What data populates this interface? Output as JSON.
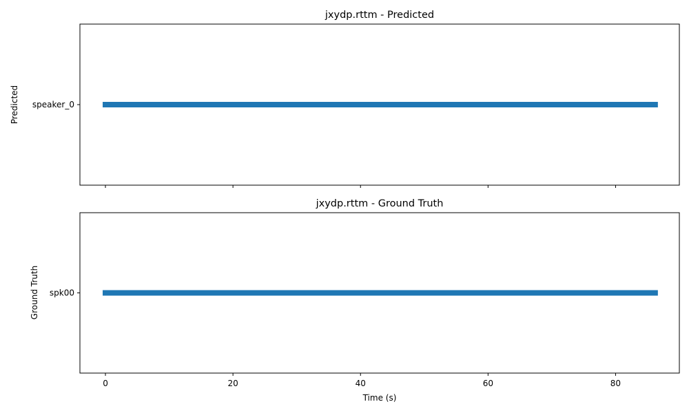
{
  "chart_data": [
    {
      "type": "timeline",
      "title": "jxydp.rttm - Predicted",
      "ylabel": "Predicted",
      "xlabel": "",
      "xlim": [
        -4,
        90
      ],
      "xticks": [
        0,
        20,
        40,
        60,
        80
      ],
      "show_xtick_labels": false,
      "categories": [
        "speaker_0"
      ],
      "segments": [
        {
          "speaker": "speaker_0",
          "start": 0,
          "end": 86.2
        }
      ],
      "color": "#1f77b4",
      "grid": false
    },
    {
      "type": "timeline",
      "title": "jxydp.rttm - Ground Truth",
      "ylabel": "Ground Truth",
      "xlabel": "Time (s)",
      "xlim": [
        -4,
        90
      ],
      "xticks": [
        0,
        20,
        40,
        60,
        80
      ],
      "show_xtick_labels": true,
      "categories": [
        "spk00"
      ],
      "segments": [
        {
          "speaker": "spk00",
          "start": 0,
          "end": 86.2
        }
      ],
      "color": "#1f77b4",
      "grid": false
    }
  ]
}
